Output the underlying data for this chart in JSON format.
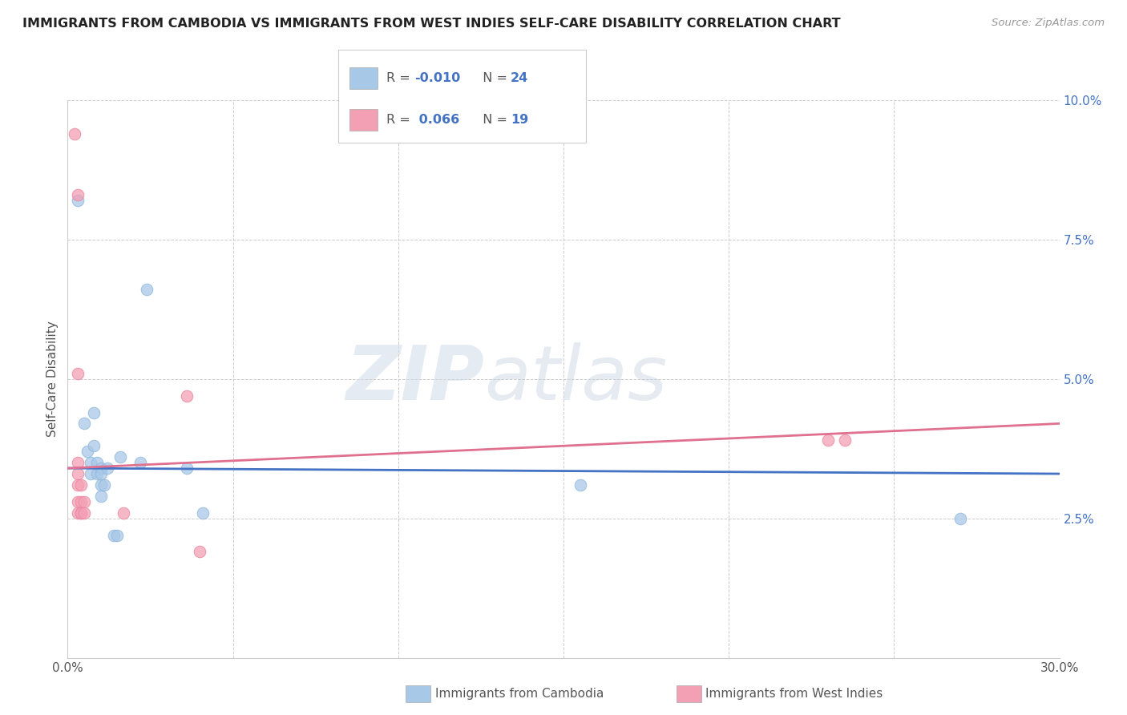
{
  "title": "IMMIGRANTS FROM CAMBODIA VS IMMIGRANTS FROM WEST INDIES SELF-CARE DISABILITY CORRELATION CHART",
  "source": "Source: ZipAtlas.com",
  "ylabel": "Self-Care Disability",
  "xlim": [
    0.0,
    0.3
  ],
  "ylim": [
    0.0,
    0.1
  ],
  "watermark_part1": "ZIP",
  "watermark_part2": "atlas",
  "cambodia_color": "#a8c8e8",
  "westindies_color": "#f4a0b4",
  "cambodia_line_color": "#4472c4",
  "westindies_line_color": "#e07090",
  "cambodia_line": [
    [
      0.0,
      0.034
    ],
    [
      0.3,
      0.033
    ]
  ],
  "westindies_line": [
    [
      0.0,
      0.034
    ],
    [
      0.3,
      0.042
    ]
  ],
  "cambodia_points": [
    [
      0.003,
      0.082
    ],
    [
      0.005,
      0.042
    ],
    [
      0.006,
      0.037
    ],
    [
      0.007,
      0.035
    ],
    [
      0.007,
      0.033
    ],
    [
      0.008,
      0.044
    ],
    [
      0.008,
      0.038
    ],
    [
      0.009,
      0.035
    ],
    [
      0.009,
      0.033
    ],
    [
      0.01,
      0.034
    ],
    [
      0.01,
      0.033
    ],
    [
      0.01,
      0.031
    ],
    [
      0.01,
      0.029
    ],
    [
      0.011,
      0.031
    ],
    [
      0.012,
      0.034
    ],
    [
      0.014,
      0.022
    ],
    [
      0.015,
      0.022
    ],
    [
      0.016,
      0.036
    ],
    [
      0.022,
      0.035
    ],
    [
      0.024,
      0.066
    ],
    [
      0.036,
      0.034
    ],
    [
      0.041,
      0.026
    ],
    [
      0.155,
      0.031
    ],
    [
      0.27,
      0.025
    ]
  ],
  "westindies_points": [
    [
      0.002,
      0.094
    ],
    [
      0.003,
      0.083
    ],
    [
      0.003,
      0.051
    ],
    [
      0.003,
      0.035
    ],
    [
      0.003,
      0.033
    ],
    [
      0.003,
      0.031
    ],
    [
      0.003,
      0.028
    ],
    [
      0.003,
      0.026
    ],
    [
      0.004,
      0.031
    ],
    [
      0.004,
      0.028
    ],
    [
      0.004,
      0.026
    ],
    [
      0.004,
      0.026
    ],
    [
      0.005,
      0.028
    ],
    [
      0.005,
      0.026
    ],
    [
      0.017,
      0.026
    ],
    [
      0.036,
      0.047
    ],
    [
      0.04,
      0.019
    ],
    [
      0.23,
      0.039
    ],
    [
      0.235,
      0.039
    ]
  ],
  "legend_r1": "-0.010",
  "legend_n1": "24",
  "legend_r2": "0.066",
  "legend_n2": "19",
  "bottom_label1": "Immigrants from Cambodia",
  "bottom_label2": "Immigrants from West Indies"
}
